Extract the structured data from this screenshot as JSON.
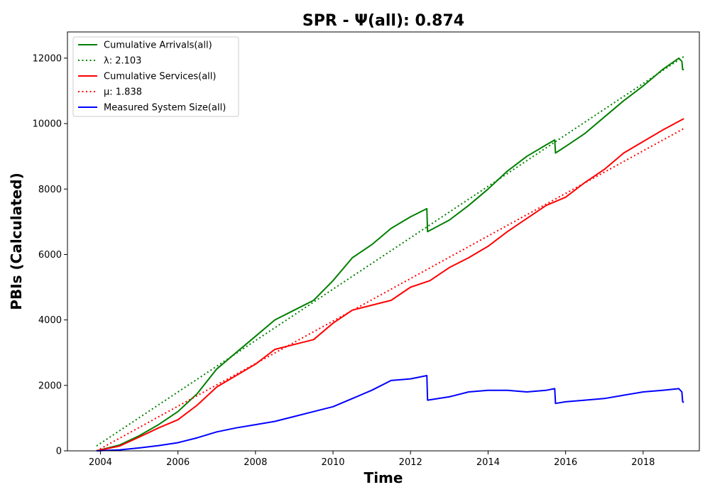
{
  "chart_data": {
    "type": "line",
    "title": "SPR -  Ψ(all): 0.874",
    "xlabel": "Time",
    "ylabel": "PBIs (Calculated)",
    "xlim": [
      2003.15,
      2019.45
    ],
    "ylim": [
      0,
      12800
    ],
    "x_ticks": [
      "2004",
      "2006",
      "2008",
      "2010",
      "2012",
      "2014",
      "2016",
      "2018"
    ],
    "y_ticks": [
      "0",
      "2000",
      "4000",
      "6000",
      "8000",
      "10000",
      "12000"
    ],
    "grid": false,
    "legend_position": "top-left",
    "series": [
      {
        "name": "Cumulative Arrivals(all)",
        "color": "#008000",
        "style": "solid",
        "points": [
          [
            2003.9,
            0
          ],
          [
            2004.5,
            180
          ],
          [
            2005,
            460
          ],
          [
            2005.5,
            800
          ],
          [
            2006,
            1200
          ],
          [
            2006.5,
            1750
          ],
          [
            2007,
            2500
          ],
          [
            2007.5,
            3000
          ],
          [
            2008,
            3500
          ],
          [
            2008.5,
            4000
          ],
          [
            2009,
            4300
          ],
          [
            2009.5,
            4600
          ],
          [
            2010,
            5200
          ],
          [
            2010.5,
            5900
          ],
          [
            2011,
            6300
          ],
          [
            2011.5,
            6800
          ],
          [
            2012,
            7150
          ],
          [
            2012.42,
            7400
          ],
          [
            2012.44,
            6700
          ],
          [
            2013,
            7050
          ],
          [
            2013.5,
            7500
          ],
          [
            2014,
            8000
          ],
          [
            2014.5,
            8550
          ],
          [
            2015,
            9000
          ],
          [
            2015.5,
            9350
          ],
          [
            2015.72,
            9500
          ],
          [
            2015.74,
            9100
          ],
          [
            2016,
            9300
          ],
          [
            2016.5,
            9700
          ],
          [
            2017,
            10200
          ],
          [
            2017.5,
            10700
          ],
          [
            2018,
            11150
          ],
          [
            2018.5,
            11650
          ],
          [
            2018.92,
            12000
          ],
          [
            2019.0,
            11900
          ],
          [
            2019.02,
            11650
          ],
          [
            2019.05,
            11650
          ]
        ]
      },
      {
        "name": "λ: 2.103",
        "color": "#008000",
        "style": "dotted",
        "points": [
          [
            2003.9,
            150
          ],
          [
            2019.05,
            12050
          ]
        ]
      },
      {
        "name": "Cumulative Services(all)",
        "color": "#ff0000",
        "style": "solid",
        "points": [
          [
            2003.9,
            0
          ],
          [
            2004.5,
            150
          ],
          [
            2005,
            420
          ],
          [
            2005.5,
            700
          ],
          [
            2006,
            950
          ],
          [
            2006.5,
            1400
          ],
          [
            2007,
            1950
          ],
          [
            2007.5,
            2300
          ],
          [
            2008,
            2650
          ],
          [
            2008.5,
            3100
          ],
          [
            2009,
            3250
          ],
          [
            2009.5,
            3400
          ],
          [
            2010,
            3900
          ],
          [
            2010.5,
            4300
          ],
          [
            2011,
            4450
          ],
          [
            2011.5,
            4600
          ],
          [
            2012,
            5000
          ],
          [
            2012.5,
            5200
          ],
          [
            2013,
            5600
          ],
          [
            2013.5,
            5900
          ],
          [
            2014,
            6250
          ],
          [
            2014.5,
            6700
          ],
          [
            2015,
            7100
          ],
          [
            2015.5,
            7500
          ],
          [
            2016,
            7750
          ],
          [
            2016.5,
            8200
          ],
          [
            2017,
            8600
          ],
          [
            2017.5,
            9100
          ],
          [
            2018,
            9450
          ],
          [
            2018.5,
            9800
          ],
          [
            2019.05,
            10150
          ]
        ]
      },
      {
        "name": "μ: 1.838",
        "color": "#ff0000",
        "style": "dotted",
        "points": [
          [
            2003.9,
            0
          ],
          [
            2019.05,
            9850
          ]
        ]
      },
      {
        "name": "Measured System Size(all)",
        "color": "#0000ff",
        "style": "solid",
        "points": [
          [
            2003.9,
            0
          ],
          [
            2004.5,
            30
          ],
          [
            2005,
            90
          ],
          [
            2005.5,
            160
          ],
          [
            2006,
            250
          ],
          [
            2006.5,
            400
          ],
          [
            2007,
            580
          ],
          [
            2007.5,
            700
          ],
          [
            2008,
            800
          ],
          [
            2008.5,
            900
          ],
          [
            2009,
            1050
          ],
          [
            2009.5,
            1200
          ],
          [
            2010,
            1350
          ],
          [
            2010.5,
            1600
          ],
          [
            2011,
            1850
          ],
          [
            2011.5,
            2150
          ],
          [
            2012,
            2200
          ],
          [
            2012.42,
            2300
          ],
          [
            2012.44,
            1550
          ],
          [
            2013,
            1650
          ],
          [
            2013.5,
            1800
          ],
          [
            2014,
            1850
          ],
          [
            2014.5,
            1850
          ],
          [
            2015,
            1800
          ],
          [
            2015.5,
            1850
          ],
          [
            2015.72,
            1900
          ],
          [
            2015.74,
            1450
          ],
          [
            2016,
            1500
          ],
          [
            2016.5,
            1550
          ],
          [
            2017,
            1600
          ],
          [
            2017.5,
            1700
          ],
          [
            2018,
            1800
          ],
          [
            2018.5,
            1850
          ],
          [
            2018.92,
            1900
          ],
          [
            2019.0,
            1800
          ],
          [
            2019.02,
            1500
          ],
          [
            2019.05,
            1480
          ]
        ]
      }
    ]
  }
}
